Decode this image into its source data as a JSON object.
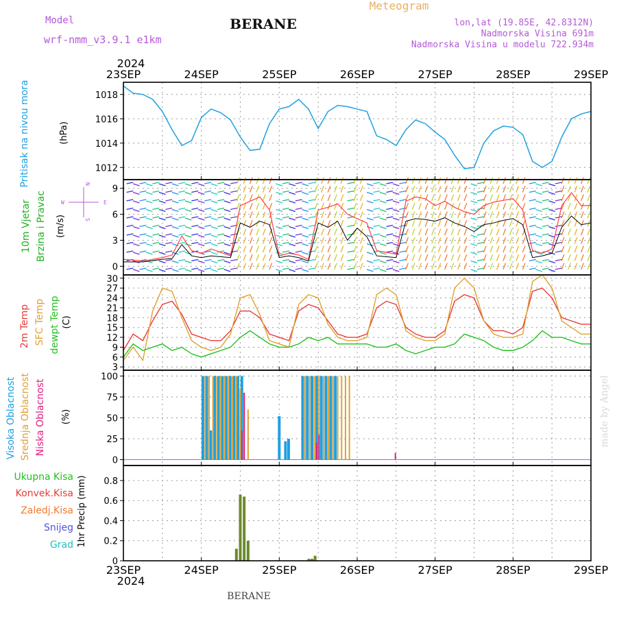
{
  "header": {
    "model_label": "Model",
    "model_name": "wrf-nmm_v3.9.1 e1km",
    "station": "BERANE",
    "meteogram": "Meteogram",
    "coords": "lon,lat (19.85E, 42.8312N)",
    "elevation": "Nadmorska Visina 691m",
    "model_elevation": "Nadmorska Visina u modelu 722.934m"
  },
  "footer": {
    "station": "BERANE"
  },
  "credit": "made by Angel",
  "time_axis": {
    "year": "2024",
    "days": [
      "23SEP",
      "24SEP",
      "25SEP",
      "26SEP",
      "27SEP",
      "28SEP",
      "29SEP"
    ]
  },
  "wind_compass": {
    "n": "N",
    "s": "S",
    "e": "E",
    "w": "W"
  },
  "colors": {
    "pressure": "#1fa0e0",
    "temp2m": "#e83a3a",
    "sfc_temp": "#e0a030",
    "dewpt": "#20c020",
    "cloud_high": "#1fa0e0",
    "cloud_mid": "#e0a030",
    "cloud_low": "#e0207f",
    "precip": "#6a8a2a",
    "wind_speed": "#000000",
    "gust": "#ff4040"
  },
  "chart_data": [
    {
      "type": "line",
      "ylabel": "Pritisak na nivou mora",
      "unit": "(hPa)",
      "ylim": [
        1011,
        1019
      ],
      "yticks": [
        1012,
        1014,
        1016,
        1018
      ],
      "series": [
        {
          "x": [
            0,
            0.125,
            0.25,
            0.375,
            0.5,
            0.625,
            0.75,
            0.875,
            1,
            1.125,
            1.25,
            1.375,
            1.5,
            1.625,
            1.75,
            1.875,
            2,
            2.125,
            2.25,
            2.375,
            2.5,
            2.625,
            2.75,
            2.875,
            3,
            3.125,
            3.25,
            3.375,
            3.5,
            3.625,
            3.75,
            3.875,
            4,
            4.125,
            4.25,
            4.375,
            4.5,
            4.625,
            4.75,
            4.875,
            5,
            5.125,
            5.25,
            5.375,
            5.5,
            5.625,
            5.75,
            5.875,
            6
          ],
          "values": [
            1018.7,
            1018.1,
            1018.0,
            1017.6,
            1016.6,
            1015.1,
            1013.8,
            1014.2,
            1016.1,
            1016.8,
            1016.5,
            1015.9,
            1014.5,
            1013.4,
            1013.5,
            1015.6,
            1016.8,
            1017.0,
            1017.6,
            1016.8,
            1015.2,
            1016.6,
            1017.1,
            1017.0,
            1016.8,
            1016.6,
            1014.6,
            1014.3,
            1013.8,
            1015.1,
            1015.9,
            1015.6,
            1014.9,
            1014.3,
            1013.0,
            1011.9,
            1012.0,
            1014.0,
            1015.0,
            1015.4,
            1015.3,
            1014.7,
            1012.5,
            1012.0,
            1012.5,
            1014.5,
            1016.0,
            1016.4,
            1016.6
          ]
        }
      ]
    },
    {
      "type": "scatter",
      "ylabel": "10m Vjetar Brzina i Pravac",
      "unit": "(m/s)",
      "ylim": [
        -1,
        10
      ],
      "yticks": [
        0,
        3,
        6,
        9
      ],
      "series": [
        {
          "name": "speed",
          "x": [
            0,
            0.25,
            0.5,
            0.625,
            0.75,
            0.875,
            1,
            1.125,
            1.25,
            1.375,
            1.5,
            1.625,
            1.75,
            1.875,
            2,
            2.125,
            2.25,
            2.375,
            2.5,
            2.625,
            2.75,
            2.875,
            3,
            3.125,
            3.25,
            3.375,
            3.5,
            3.625,
            3.75,
            3.875,
            4,
            4.125,
            4.25,
            4.375,
            4.5,
            4.625,
            4.75,
            4.875,
            5,
            5.125,
            5.25,
            5.375,
            5.5,
            5.625,
            5.75,
            5.875,
            6
          ],
          "values": [
            0.5,
            0.5,
            0.8,
            0.9,
            2.5,
            1.2,
            1.0,
            1.2,
            1.1,
            1.0,
            5.0,
            4.5,
            5.2,
            4.8,
            1.0,
            1.2,
            1.0,
            0.6,
            5.0,
            4.5,
            5.2,
            3.0,
            4.4,
            3.4,
            1.2,
            1.1,
            1.0,
            5.2,
            5.5,
            5.4,
            5.2,
            5.6,
            5.0,
            4.6,
            4.0,
            4.8,
            5.0,
            5.3,
            5.5,
            4.8,
            1.0,
            1.2,
            1.5,
            4.5,
            5.8,
            4.8,
            5.0
          ]
        },
        {
          "name": "gust",
          "x": [
            0,
            0.25,
            0.5,
            0.625,
            0.75,
            0.875,
            1,
            1.125,
            1.25,
            1.375,
            1.5,
            1.625,
            1.75,
            1.875,
            2,
            2.125,
            2.25,
            2.375,
            2.5,
            2.625,
            2.75,
            2.875,
            3,
            3.125,
            3.25,
            3.375,
            3.5,
            3.625,
            3.75,
            3.875,
            4,
            4.125,
            4.25,
            4.375,
            4.5,
            4.625,
            4.75,
            4.875,
            5,
            5.125,
            5.25,
            5.375,
            5.5,
            5.625,
            5.75,
            5.875,
            6
          ],
          "values": [
            0.8,
            0.6,
            1.0,
            1.3,
            3.5,
            1.8,
            1.5,
            2.0,
            1.6,
            1.2,
            7.0,
            7.5,
            8.0,
            6.5,
            1.2,
            1.5,
            1.3,
            0.8,
            6.5,
            6.8,
            7.2,
            6.0,
            5.5,
            5.0,
            1.8,
            1.6,
            1.4,
            7.5,
            8.0,
            7.8,
            7.0,
            7.5,
            6.8,
            6.3,
            6.0,
            7.0,
            7.4,
            7.6,
            7.8,
            6.5,
            1.8,
            1.5,
            2.0,
            7.0,
            8.5,
            7.0,
            7.0
          ]
        }
      ]
    },
    {
      "type": "line",
      "ylabel": "2m Temp / SFC Temp / dewpt Temp",
      "unit": "(C)",
      "ylim": [
        2,
        31
      ],
      "yticks": [
        3,
        6,
        9,
        12,
        15,
        18,
        21,
        24,
        27,
        30
      ],
      "x": [
        0,
        0.125,
        0.25,
        0.375,
        0.5,
        0.625,
        0.75,
        0.875,
        1,
        1.125,
        1.25,
        1.375,
        1.5,
        1.625,
        1.75,
        1.875,
        2,
        2.125,
        2.25,
        2.375,
        2.5,
        2.625,
        2.75,
        2.875,
        3,
        3.125,
        3.25,
        3.375,
        3.5,
        3.625,
        3.75,
        3.875,
        4,
        4.125,
        4.25,
        4.375,
        4.5,
        4.625,
        4.75,
        4.875,
        5,
        5.125,
        5.25,
        5.375,
        5.5,
        5.625,
        5.75,
        5.875,
        6
      ],
      "series": [
        {
          "name": "2m Temp",
          "values": [
            8,
            13,
            11,
            17,
            22,
            23,
            19,
            13,
            12,
            11,
            11,
            14,
            20,
            20,
            18,
            13,
            12,
            11,
            20,
            22,
            21,
            17,
            13,
            12,
            12,
            13,
            21,
            23,
            22,
            15,
            13,
            12,
            12,
            14,
            23,
            25,
            24,
            17,
            14,
            14,
            13,
            15,
            26,
            27,
            24,
            18,
            17,
            16,
            16
          ]
        },
        {
          "name": "SFC Temp",
          "values": [
            5,
            9,
            5,
            20,
            27,
            26,
            18,
            11,
            9,
            8,
            9,
            13,
            24,
            25,
            19,
            11,
            10,
            9,
            22,
            25,
            24,
            16,
            12,
            11,
            11,
            12,
            25,
            27,
            25,
            14,
            12,
            11,
            11,
            13,
            27,
            30,
            27,
            17,
            13,
            12,
            12,
            13,
            29,
            31,
            27,
            17,
            15,
            13,
            13
          ]
        },
        {
          "name": "dewpt Temp",
          "values": [
            6,
            10,
            8,
            9,
            10,
            8,
            9,
            7,
            6,
            7,
            8,
            9,
            12,
            14,
            12,
            10,
            9,
            9,
            10,
            12,
            11,
            12,
            10,
            10,
            10,
            10,
            9,
            9,
            10,
            8,
            7,
            8,
            9,
            9,
            10,
            13,
            12,
            11,
            9,
            8,
            8,
            9,
            11,
            14,
            12,
            12,
            11,
            10,
            10
          ]
        }
      ]
    },
    {
      "type": "bar",
      "ylabel": "Visoka Oblacnost / Srednja Oblacnost / Niska Oblacnost",
      "unit": "(%)",
      "ylim": [
        -7,
        107
      ],
      "yticks": [
        0,
        25,
        50,
        75,
        100
      ],
      "series": [
        {
          "name": "Visoka Oblacnost",
          "x": [
            1.02,
            1.07,
            1.12,
            1.17,
            1.22,
            1.27,
            1.32,
            1.37,
            1.42,
            1.47,
            1.52,
            2.0,
            2.08,
            2.12,
            2.3,
            2.36,
            2.42,
            2.48,
            2.54,
            2.6,
            2.66,
            2.72
          ],
          "values": [
            100,
            100,
            35,
            100,
            100,
            100,
            100,
            100,
            100,
            100,
            100,
            52,
            22,
            25,
            100,
            100,
            100,
            100,
            100,
            100,
            100,
            100
          ]
        },
        {
          "name": "Srednja Oblacnost",
          "x": [
            1.05,
            1.1,
            1.15,
            1.2,
            1.25,
            1.3,
            1.35,
            1.4,
            1.45,
            1.5,
            1.55,
            1.6,
            2.33,
            2.39,
            2.45,
            2.51,
            2.57,
            2.63,
            2.69,
            2.75,
            2.8,
            2.85,
            2.9
          ],
          "values": [
            100,
            100,
            100,
            100,
            100,
            100,
            100,
            100,
            100,
            85,
            80,
            60,
            100,
            100,
            100,
            100,
            100,
            100,
            100,
            100,
            100,
            100,
            100
          ]
        },
        {
          "name": "Niska Oblacnost",
          "x": [
            1.52,
            1.55,
            2.48,
            2.51,
            3.49
          ],
          "values": [
            35,
            80,
            20,
            30,
            8
          ]
        }
      ]
    },
    {
      "type": "bar",
      "ylabel": "1hr Precip",
      "unit": "(mm)",
      "ylim": [
        0,
        0.95
      ],
      "yticks": [
        0,
        0.2,
        0.4,
        0.6,
        0.8
      ],
      "legend": [
        "Ukupna Kisa",
        "Konvek.Kisa",
        "Zaledj.Kisa",
        "Snijeg",
        "Grad"
      ],
      "series": [
        {
          "name": "Ukupna Kisa",
          "x": [
            1.45,
            1.5,
            1.55,
            1.6,
            2.38,
            2.42,
            2.46
          ],
          "values": [
            0.12,
            0.66,
            0.64,
            0.2,
            0.02,
            0.02,
            0.05
          ]
        }
      ]
    }
  ]
}
